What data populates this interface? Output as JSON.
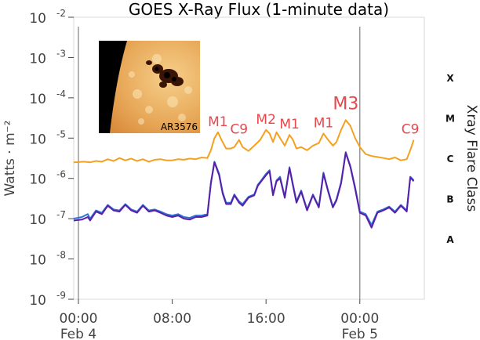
{
  "chart_data": {
    "type": "line",
    "title": "GOES X-Ray Flux (1-minute data)",
    "ylabel": "Watts · m⁻²",
    "y2label": "Xray Flare Class",
    "yscale": "log",
    "ylim": [
      1e-09,
      0.01
    ],
    "y_ticks": [
      {
        "exp": "-2"
      },
      {
        "exp": "-3"
      },
      {
        "exp": "-4"
      },
      {
        "exp": "-5"
      },
      {
        "exp": "-6"
      },
      {
        "exp": "-7"
      },
      {
        "exp": "-8"
      },
      {
        "exp": "-9"
      }
    ],
    "tick_base": "10",
    "x_ticks": [
      {
        "time": "00:00",
        "date": "Feb 4",
        "hour": 0
      },
      {
        "time": "08:00",
        "date": "",
        "hour": 8
      },
      {
        "time": "16:00",
        "date": "",
        "hour": 16
      },
      {
        "time": "00:00",
        "date": "Feb 5",
        "hour": 24
      }
    ],
    "xlim_hours": [
      -0.4,
      29.5
    ],
    "flare_classes": [
      {
        "label": "X",
        "flux": 0.0001
      },
      {
        "label": "M",
        "flux": 1e-05
      },
      {
        "label": "C",
        "flux": 1e-06
      },
      {
        "label": "B",
        "flux": 1e-07
      },
      {
        "label": "A",
        "flux": 1e-08
      }
    ],
    "vertical_lines_hours": [
      0,
      24
    ],
    "grid": false,
    "inset_label": "AR3576",
    "annotations": [
      {
        "text": "M1",
        "hour": 11.9,
        "flux": 1.4e-05,
        "big": false
      },
      {
        "text": "C9",
        "hour": 13.7,
        "flux": 9e-06,
        "big": false
      },
      {
        "text": "M2",
        "hour": 16.0,
        "flux": 1.6e-05,
        "big": false
      },
      {
        "text": "M1",
        "hour": 18.0,
        "flux": 1.2e-05,
        "big": false
      },
      {
        "text": "M1",
        "hour": 20.9,
        "flux": 1.3e-05,
        "big": false
      },
      {
        "text": "M3",
        "hour": 22.8,
        "flux": 2.8e-05,
        "big": true
      },
      {
        "text": "C9",
        "hour": 28.3,
        "flux": 9e-06,
        "big": false
      }
    ],
    "series": [
      {
        "color": "#f4a11f",
        "hours": [
          -0.4,
          0.5,
          1,
          1.5,
          2,
          2.5,
          3,
          3.5,
          4,
          4.5,
          5,
          5.5,
          6,
          6.5,
          7,
          7.5,
          8,
          8.5,
          9,
          9.5,
          10,
          10.5,
          11,
          11.3,
          11.6,
          11.9,
          12.2,
          12.6,
          13,
          13.3,
          13.7,
          14,
          14.5,
          15,
          15.5,
          16,
          16.3,
          16.6,
          16.9,
          17.2,
          17.6,
          18,
          18.3,
          18.6,
          19,
          19.5,
          20,
          20.5,
          20.9,
          21.3,
          21.7,
          22,
          22.4,
          22.8,
          23.2,
          23.6,
          24,
          24.5,
          25,
          25.5,
          26,
          26.5,
          27,
          27.5,
          28,
          28.3,
          28.6
        ],
        "values": [
          2.5e-06,
          2.6e-06,
          2.5e-06,
          2.7e-06,
          2.6e-06,
          3e-06,
          2.7e-06,
          3.2e-06,
          2.8e-06,
          3.1e-06,
          2.7e-06,
          3e-06,
          2.6e-06,
          2.9e-06,
          3e-06,
          2.8e-06,
          2.8e-06,
          3e-06,
          2.9e-06,
          3.1e-06,
          3e-06,
          3.3e-06,
          3.2e-06,
          5e-06,
          1e-05,
          1.4e-05,
          9e-06,
          5.5e-06,
          5.5e-06,
          6e-06,
          9e-06,
          6e-06,
          4.8e-06,
          6.5e-06,
          9e-06,
          1.6e-05,
          1.3e-05,
          8e-06,
          1.4e-05,
          1e-05,
          6.5e-06,
          1.2e-05,
          9e-06,
          5.5e-06,
          6e-06,
          5e-06,
          6.5e-06,
          7.5e-06,
          1.3e-05,
          9e-06,
          6.5e-06,
          8e-06,
          1.6e-05,
          2.8e-05,
          2e-05,
          1e-05,
          6e-06,
          4e-06,
          3.6e-06,
          3.4e-06,
          3.2e-06,
          3e-06,
          3.3e-06,
          2.8e-06,
          3e-06,
          5e-06,
          9e-06
        ]
      },
      {
        "color": "#2b74d8",
        "hours": [
          -0.4,
          0.3,
          0.8,
          1,
          1.5,
          2,
          2.5,
          3,
          3.5,
          4,
          4.5,
          5,
          5.5,
          6,
          6.5,
          7,
          7.5,
          8,
          8.5,
          9,
          9.5,
          10,
          10.5,
          11,
          11.3,
          11.6,
          12,
          12.3,
          12.6,
          13,
          13.3,
          13.7,
          14,
          14.5,
          15,
          15.3,
          15.6,
          16,
          16.3,
          16.6,
          16.9,
          17.2,
          17.6,
          18,
          18.3,
          18.6,
          19,
          19.5,
          20,
          20.5,
          20.9,
          21.3,
          21.7,
          22,
          22.4,
          22.8,
          23.2,
          23.6,
          24,
          24.5,
          25,
          25.5,
          26,
          26.5,
          27,
          27.5,
          28,
          28.3,
          28.6
        ],
        "values": [
          1e-07,
          1.1e-07,
          1.3e-07,
          1e-07,
          1.6e-07,
          1.4e-07,
          2.2e-07,
          1.7e-07,
          1.6e-07,
          2.3e-07,
          1.7e-07,
          1.5e-07,
          2.2e-07,
          1.6e-07,
          1.7e-07,
          1.5e-07,
          1.3e-07,
          1.2e-07,
          1.3e-07,
          1.1e-07,
          1.05e-07,
          1.2e-07,
          1.2e-07,
          1.3e-07,
          8e-07,
          2.6e-06,
          1.3e-06,
          4.5e-07,
          2.5e-07,
          2.5e-07,
          4e-07,
          2.7e-07,
          2.3e-07,
          3.5e-07,
          4e-07,
          7e-07,
          9e-07,
          1.3e-06,
          1.6e-06,
          4e-07,
          9e-07,
          1.1e-06,
          3.5e-07,
          1.9e-06,
          7e-07,
          2.7e-07,
          5e-07,
          1.7e-07,
          4e-07,
          2e-07,
          1.4e-06,
          5e-07,
          2e-07,
          3e-07,
          8e-07,
          4.5e-06,
          2e-06,
          6e-07,
          1.5e-07,
          1.3e-07,
          7e-08,
          1.5e-07,
          1.7e-07,
          2e-07,
          1.5e-07,
          2.2e-07,
          1.6e-07,
          1.1e-06,
          9e-07
        ]
      },
      {
        "color": "#5a1fa8",
        "hours": [
          -0.4,
          0.3,
          0.8,
          1,
          1.5,
          2,
          2.5,
          3,
          3.5,
          4,
          4.5,
          5,
          5.5,
          6,
          6.5,
          7,
          7.5,
          8,
          8.5,
          9,
          9.5,
          10,
          10.5,
          11,
          11.3,
          11.6,
          12,
          12.3,
          12.6,
          13,
          13.3,
          13.7,
          14,
          14.5,
          15,
          15.3,
          15.6,
          16,
          16.3,
          16.6,
          16.9,
          17.2,
          17.6,
          18,
          18.3,
          18.6,
          19,
          19.5,
          20,
          20.5,
          20.9,
          21.3,
          21.7,
          22,
          22.4,
          22.8,
          23.2,
          23.6,
          24,
          24.5,
          25,
          25.5,
          26,
          26.5,
          27,
          27.5,
          28,
          28.3,
          28.6
        ],
        "values": [
          9e-08,
          9.5e-08,
          1.1e-07,
          9e-08,
          1.5e-07,
          1.3e-07,
          2.1e-07,
          1.6e-07,
          1.5e-07,
          2.2e-07,
          1.6e-07,
          1.4e-07,
          2.1e-07,
          1.5e-07,
          1.6e-07,
          1.4e-07,
          1.2e-07,
          1.1e-07,
          1.2e-07,
          1e-07,
          9.5e-08,
          1.1e-07,
          1.1e-07,
          1.2e-07,
          7.5e-07,
          2.5e-06,
          1.2e-06,
          4.2e-07,
          2.3e-07,
          2.3e-07,
          3.8e-07,
          2.5e-07,
          2.1e-07,
          3.3e-07,
          3.8e-07,
          6.5e-07,
          8.5e-07,
          1.2e-06,
          1.5e-06,
          3.8e-07,
          8.5e-07,
          1e-06,
          3.3e-07,
          1.8e-06,
          6.5e-07,
          2.5e-07,
          4.7e-07,
          1.6e-07,
          3.8e-07,
          1.9e-07,
          1.3e-06,
          4.7e-07,
          1.9e-07,
          2.8e-07,
          7.5e-07,
          4.3e-06,
          1.9e-06,
          5.5e-07,
          1.4e-07,
          1.2e-07,
          6e-08,
          1.4e-07,
          1.6e-07,
          1.9e-07,
          1.4e-07,
          2.1e-07,
          1.5e-07,
          1.05e-06,
          8.5e-07
        ]
      }
    ]
  }
}
